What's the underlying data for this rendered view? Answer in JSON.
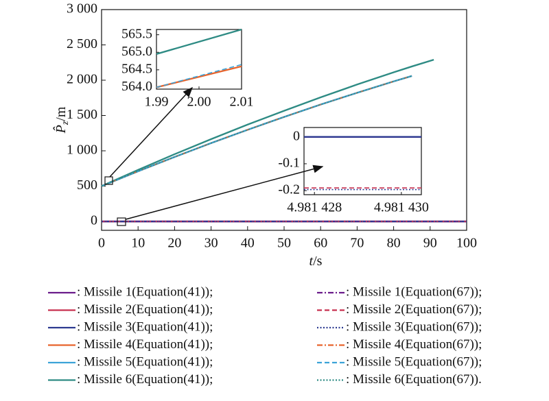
{
  "chart_data": [
    {
      "type": "line",
      "xlabel": {
        "symbol": "t",
        "unit": "/s"
      },
      "ylabel": {
        "symbol": "P̂",
        "subscript": "z",
        "unit": "/m"
      },
      "xlim": [
        0,
        100
      ],
      "xticks": [
        0,
        10,
        20,
        30,
        40,
        50,
        60,
        70,
        80,
        90,
        100
      ],
      "ylim": [
        -126,
        3000
      ],
      "yticks": [
        0,
        500,
        {
          "value": 1000,
          "label": "1 000"
        },
        {
          "value": 1500,
          "label": "1 500"
        },
        {
          "value": 2000,
          "label": "2 000"
        },
        {
          "value": 2500,
          "label": "2 500"
        },
        {
          "value": 3000,
          "label": "3 000"
        }
      ],
      "x": [
        0,
        10,
        20,
        30,
        40,
        50,
        60,
        70,
        80,
        85,
        91,
        100
      ],
      "series": [
        {
          "name": ": Missile 1(Equation(41));",
          "color": "#6a1b8a",
          "style": "solid",
          "values": [
            0,
            0,
            0,
            0,
            0,
            0,
            0,
            0,
            0,
            0,
            0,
            0
          ]
        },
        {
          "name": ": Missile 2(Equation(41));",
          "color": "#c8304f",
          "style": "solid",
          "values": [
            0,
            0,
            0,
            0,
            0,
            0,
            0,
            0,
            0,
            0,
            0,
            0
          ]
        },
        {
          "name": ": Missile 3(Equation(41));",
          "color": "#2b3990",
          "style": "solid",
          "values": [
            0,
            0,
            0,
            0,
            0,
            0,
            0,
            0,
            0,
            0,
            0,
            0
          ]
        },
        {
          "name": ": Missile 4(Equation(41));",
          "color": "#e8642c",
          "style": "solid",
          "values": [
            500,
            710,
            913,
            1109,
            1298,
            1480,
            1655,
            1822,
            1983,
            2060,
            null,
            null
          ]
        },
        {
          "name": ": Missile 5(Equation(41));",
          "color": "#3ba3d8",
          "style": "solid",
          "values": [
            500,
            710,
            913,
            1109,
            1298,
            1480,
            1655,
            1822,
            1983,
            2060,
            null,
            null
          ]
        },
        {
          "name": ": Missile 6(Equation(41));",
          "color": "#2e8b84",
          "style": "solid",
          "values": [
            500,
            730,
            952,
            1165,
            1371,
            1567,
            1757,
            1939,
            2112,
            2195,
            2290,
            null
          ]
        },
        {
          "name": ": Missile 1(Equation(67));",
          "color": "#6a1b8a",
          "style": "dashdot",
          "values": [
            0,
            0,
            0,
            0,
            0,
            0,
            0,
            0,
            0,
            0,
            0,
            0
          ]
        },
        {
          "name": ": Missile 2(Equation(67));",
          "color": "#c8304f",
          "style": "dashed",
          "values": [
            0,
            0,
            0,
            0,
            0,
            0,
            0,
            0,
            0,
            0,
            0,
            0
          ]
        },
        {
          "name": ": Missile 3(Equation(67));",
          "color": "#2b3990",
          "style": "dotted",
          "values": [
            0,
            0,
            0,
            0,
            0,
            0,
            0,
            0,
            0,
            0,
            0,
            0
          ]
        },
        {
          "name": ": Missile 4(Equation(67));",
          "color": "#e8642c",
          "style": "dashdot",
          "values": [
            500,
            710,
            913,
            1109,
            1298,
            1480,
            1655,
            1822,
            1983,
            2060,
            null,
            null
          ]
        },
        {
          "name": ": Missile 5(Equation(67));",
          "color": "#3ba3d8",
          "style": "dashed",
          "values": [
            500,
            710,
            913,
            1109,
            1298,
            1480,
            1655,
            1822,
            1983,
            2060,
            null,
            null
          ]
        },
        {
          "name": ": Missile 6(Equation(67)).",
          "color": "#2e8b84",
          "style": "dotted",
          "values": [
            500,
            710,
            913,
            1109,
            1298,
            1480,
            1655,
            1822,
            1983,
            2060,
            null,
            null
          ]
        }
      ]
    },
    {
      "type": "line",
      "xlim": [
        1.99,
        2.01
      ],
      "xticks": [
        1.99,
        {
          "value": 2,
          "label": "2.00"
        },
        2.01
      ],
      "ylim": [
        563.95,
        565.65
      ],
      "yticks": [
        {
          "value": 564,
          "label": "564.0"
        },
        564.5,
        {
          "value": 565,
          "label": "565.0"
        },
        565.5
      ],
      "series": [
        {
          "color": "#2e8b84",
          "style": "solid",
          "x": [
            1.99,
            2.01
          ],
          "values": [
            564.95,
            565.65
          ]
        },
        {
          "color": "#e8642c",
          "style": "solid",
          "x": [
            1.99,
            2.01
          ],
          "values": [
            564.0,
            564.6
          ]
        },
        {
          "color": "#3ba3d8",
          "style": "dashed",
          "x": [
            1.99,
            2.01
          ],
          "values": [
            564.0,
            564.65
          ]
        }
      ]
    },
    {
      "type": "line",
      "xlim": [
        4.98142776,
        4.98143046
      ],
      "xticks": [
        {
          "value": 4.981428,
          "label": "4.981 428"
        },
        {
          "value": 4.98143,
          "label": "4.981 430"
        }
      ],
      "ylim": [
        -0.215,
        0.035
      ],
      "yticks": [
        0,
        -0.1,
        -0.2
      ],
      "series": [
        {
          "color": "#6a1b8a",
          "style": "solid",
          "x": [
            4.98142776,
            4.98143046
          ],
          "values": [
            0,
            0
          ]
        },
        {
          "color": "#2b3990",
          "style": "solid",
          "x": [
            4.98142776,
            4.98143046
          ],
          "values": [
            0,
            0
          ]
        },
        {
          "color": "#c8304f",
          "style": "dashed",
          "x": [
            4.98142776,
            4.98143046
          ],
          "values": [
            -0.19,
            -0.19
          ]
        },
        {
          "color": "#2b3990",
          "style": "dotted",
          "x": [
            4.98142776,
            4.98143046
          ],
          "values": [
            -0.196,
            -0.196
          ]
        }
      ]
    }
  ]
}
